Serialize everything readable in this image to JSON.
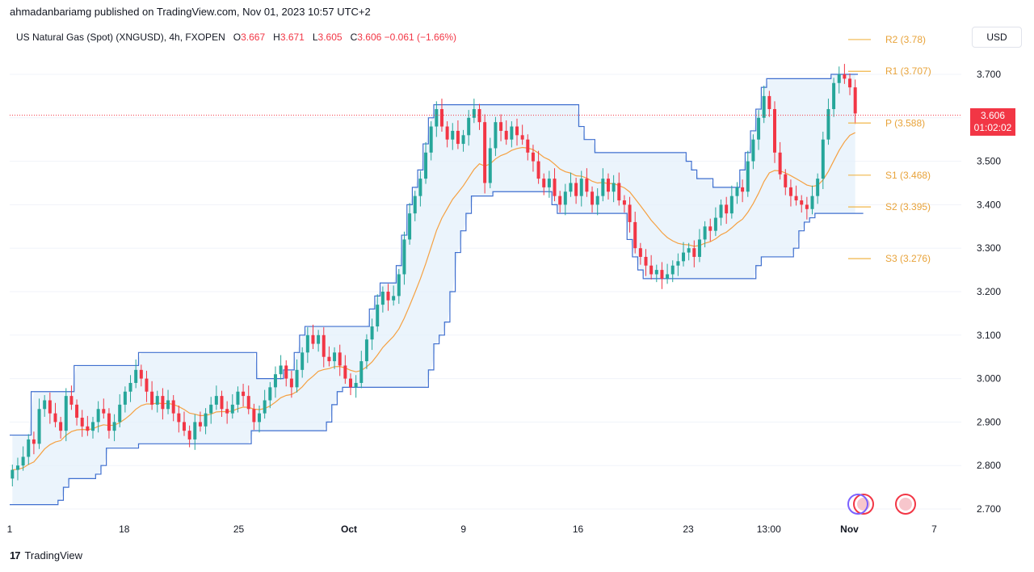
{
  "header": {
    "caption": "ahmadanbariamg published on TradingView.com, Nov 01, 2023 10:57 UTC+2",
    "symbol": "US Natural Gas (Spot) (XNGUSD), 4h, FXOPEN",
    "ohlc": [
      {
        "k": "O",
        "v": "3.667"
      },
      {
        "k": "H",
        "v": "3.671"
      },
      {
        "k": "L",
        "v": "3.605"
      },
      {
        "k": "C",
        "v": "3.606"
      }
    ],
    "change": "−0.061 (−1.66%)"
  },
  "currency": "USD",
  "footer": {
    "brand": "TradingView",
    "mark": "17"
  },
  "price_tag": {
    "price": "3.606",
    "countdown": "01:02:02"
  },
  "colors": {
    "up": "#26a69a",
    "down": "#f23645",
    "channel": "#3f6fcf",
    "channel_fill": "#e3f0fb",
    "midline": "#f5a142",
    "pivot": "#f0b64a",
    "grid": "#f0f3fa"
  },
  "chart_data": {
    "type": "candlestick",
    "ylim": [
      2.68,
      3.78
    ],
    "y_ticks": [
      "3.700",
      "3.600",
      "3.500",
      "3.400",
      "3.300",
      "3.200",
      "3.100",
      "3.000",
      "2.900",
      "2.800",
      "2.700"
    ],
    "y_tick_values": [
      3.7,
      3.6,
      3.5,
      3.4,
      3.3,
      3.2,
      3.1,
      3.0,
      2.9,
      2.8,
      2.7
    ],
    "x_ticks": [
      "1",
      "18",
      "25",
      "Oct",
      "9",
      "16",
      "23",
      "13:00",
      "Nov",
      "7"
    ],
    "current_price": 3.606,
    "pivot_levels": [
      {
        "label": "R2 (3.78)",
        "value": 3.78
      },
      {
        "label": "R1 (3.707)",
        "value": 3.707
      },
      {
        "label": "P (3.588)",
        "value": 3.588
      },
      {
        "label": "S1 (3.468)",
        "value": 3.468
      },
      {
        "label": "S2 (3.395)",
        "value": 3.395
      },
      {
        "label": "S3 (3.276)",
        "value": 3.276
      }
    ],
    "close_series": [
      2.79,
      2.8,
      2.82,
      2.86,
      2.85,
      2.93,
      2.95,
      2.92,
      2.9,
      2.88,
      2.96,
      2.94,
      2.91,
      2.89,
      2.88,
      2.9,
      2.93,
      2.92,
      2.88,
      2.9,
      2.94,
      2.97,
      2.99,
      3.02,
      3.0,
      2.97,
      2.94,
      2.96,
      2.93,
      2.95,
      2.92,
      2.9,
      2.88,
      2.86,
      2.9,
      2.89,
      2.92,
      2.94,
      2.96,
      2.93,
      2.92,
      2.94,
      2.97,
      2.96,
      2.93,
      2.9,
      2.92,
      2.95,
      2.98,
      3.01,
      3.03,
      3.0,
      2.98,
      3.02,
      3.06,
      3.1,
      3.08,
      3.1,
      3.05,
      3.04,
      3.06,
      3.03,
      3.0,
      2.98,
      2.99,
      3.04,
      3.09,
      3.12,
      3.17,
      3.2,
      3.18,
      3.19,
      3.24,
      3.32,
      3.38,
      3.42,
      3.46,
      3.52,
      3.58,
      3.62,
      3.58,
      3.55,
      3.57,
      3.54,
      3.56,
      3.6,
      3.62,
      3.59,
      3.45,
      3.53,
      3.59,
      3.57,
      3.55,
      3.58,
      3.56,
      3.55,
      3.52,
      3.5,
      3.46,
      3.44,
      3.46,
      3.42,
      3.4,
      3.43,
      3.45,
      3.42,
      3.46,
      3.43,
      3.4,
      3.42,
      3.46,
      3.43,
      3.45,
      3.41,
      3.4,
      3.36,
      3.3,
      3.28,
      3.26,
      3.24,
      3.25,
      3.23,
      3.24,
      3.26,
      3.27,
      3.29,
      3.3,
      3.28,
      3.32,
      3.35,
      3.34,
      3.37,
      3.4,
      3.38,
      3.42,
      3.44,
      3.43,
      3.5,
      3.55,
      3.6,
      3.65,
      3.62,
      3.52,
      3.47,
      3.44,
      3.42,
      3.41,
      3.4,
      3.39,
      3.42,
      3.46,
      3.55,
      3.62,
      3.68,
      3.7,
      3.69,
      3.67,
      3.61
    ],
    "channel_upper": [
      2.87,
      2.87,
      2.87,
      2.87,
      2.97,
      2.97,
      2.97,
      2.97,
      2.97,
      2.97,
      2.97,
      2.97,
      3.03,
      3.03,
      3.03,
      3.03,
      3.03,
      3.03,
      3.03,
      3.03,
      3.03,
      3.03,
      3.03,
      3.03,
      3.06,
      3.06,
      3.06,
      3.06,
      3.06,
      3.06,
      3.06,
      3.06,
      3.06,
      3.06,
      3.06,
      3.06,
      3.06,
      3.06,
      3.06,
      3.06,
      3.06,
      3.06,
      3.06,
      3.06,
      3.06,
      3.06,
      3.0,
      3.0,
      3.0,
      3.0,
      3.0,
      3.02,
      3.02,
      3.06,
      3.1,
      3.12,
      3.12,
      3.12,
      3.12,
      3.12,
      3.12,
      3.12,
      3.12,
      3.12,
      3.12,
      3.12,
      3.12,
      3.16,
      3.19,
      3.22,
      3.22,
      3.22,
      3.26,
      3.33,
      3.4,
      3.44,
      3.48,
      3.54,
      3.6,
      3.63,
      3.63,
      3.63,
      3.63,
      3.63,
      3.63,
      3.63,
      3.63,
      3.63,
      3.63,
      3.63,
      3.63,
      3.63,
      3.63,
      3.63,
      3.63,
      3.63,
      3.63,
      3.63,
      3.63,
      3.63,
      3.63,
      3.63,
      3.63,
      3.63,
      3.63,
      3.63,
      3.58,
      3.55,
      3.55,
      3.52,
      3.52,
      3.52,
      3.52,
      3.52,
      3.52,
      3.52,
      3.52,
      3.52,
      3.52,
      3.52,
      3.52,
      3.52,
      3.52,
      3.52,
      3.52,
      3.52,
      3.5,
      3.48,
      3.46,
      3.46,
      3.46,
      3.44,
      3.44,
      3.44,
      3.44,
      3.44,
      3.48,
      3.52,
      3.57,
      3.62,
      3.67,
      3.69,
      3.69,
      3.69,
      3.69,
      3.69,
      3.69,
      3.69,
      3.69,
      3.69,
      3.69,
      3.69,
      3.69,
      3.7,
      3.7,
      3.7,
      3.7,
      3.7
    ],
    "channel_lower": [
      2.71,
      2.71,
      2.71,
      2.71,
      2.71,
      2.71,
      2.71,
      2.71,
      2.71,
      2.72,
      2.75,
      2.77,
      2.77,
      2.77,
      2.77,
      2.77,
      2.78,
      2.8,
      2.84,
      2.84,
      2.84,
      2.84,
      2.84,
      2.84,
      2.85,
      2.85,
      2.85,
      2.85,
      2.85,
      2.85,
      2.85,
      2.85,
      2.85,
      2.85,
      2.85,
      2.85,
      2.85,
      2.85,
      2.85,
      2.85,
      2.85,
      2.85,
      2.85,
      2.85,
      2.85,
      2.88,
      2.88,
      2.88,
      2.88,
      2.88,
      2.88,
      2.88,
      2.88,
      2.88,
      2.88,
      2.88,
      2.88,
      2.88,
      2.88,
      2.9,
      2.94,
      2.97,
      2.98,
      2.98,
      2.98,
      2.98,
      2.98,
      2.98,
      2.98,
      2.98,
      2.98,
      2.98,
      2.98,
      2.98,
      2.98,
      2.98,
      2.98,
      2.98,
      3.02,
      3.08,
      3.1,
      3.13,
      3.2,
      3.29,
      3.34,
      3.38,
      3.42,
      3.42,
      3.42,
      3.42,
      3.43,
      3.43,
      3.43,
      3.43,
      3.43,
      3.43,
      3.43,
      3.43,
      3.43,
      3.43,
      3.43,
      3.4,
      3.38,
      3.38,
      3.38,
      3.38,
      3.38,
      3.38,
      3.38,
      3.38,
      3.38,
      3.38,
      3.38,
      3.38,
      3.38,
      3.32,
      3.28,
      3.25,
      3.23,
      3.23,
      3.23,
      3.23,
      3.23,
      3.23,
      3.23,
      3.23,
      3.23,
      3.23,
      3.23,
      3.23,
      3.23,
      3.23,
      3.23,
      3.23,
      3.23,
      3.23,
      3.23,
      3.23,
      3.23,
      3.26,
      3.28,
      3.28,
      3.28,
      3.28,
      3.28,
      3.28,
      3.3,
      3.34,
      3.36,
      3.37,
      3.38,
      3.38,
      3.38,
      3.38,
      3.38,
      3.38,
      3.38,
      3.38,
      3.38
    ]
  }
}
